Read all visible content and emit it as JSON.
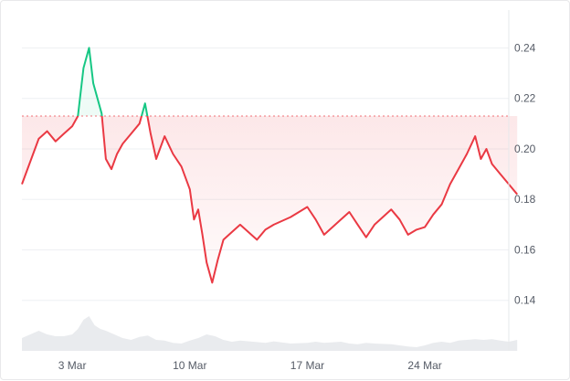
{
  "chart_data": {
    "type": "area",
    "title": "",
    "xlabel": "",
    "ylabel": "",
    "ylim": [
      0.12,
      0.255
    ],
    "baseline": 0.213,
    "x_start": "2024-02-29",
    "x_end": "2024-03-29",
    "x_ticks": [
      {
        "date": "2024-03-03",
        "label": "3 Mar"
      },
      {
        "date": "2024-03-10",
        "label": "10 Mar"
      },
      {
        "date": "2024-03-17",
        "label": "17 Mar"
      },
      {
        "date": "2024-03-24",
        "label": "24 Mar"
      }
    ],
    "y_ticks": [
      {
        "value": 0.24,
        "label": "0.24"
      },
      {
        "value": 0.22,
        "label": "0.22"
      },
      {
        "value": 0.2,
        "label": "0.20"
      },
      {
        "value": 0.18,
        "label": "0.18"
      },
      {
        "value": 0.16,
        "label": "0.16"
      },
      {
        "value": 0.14,
        "label": "0.14"
      }
    ],
    "grid": true,
    "colors": {
      "above": "#16c784",
      "below": "#ea3943",
      "volume": "#e9ebee",
      "grid": "#eef0f3"
    },
    "series": [
      {
        "values": [
          [
            "2024-02-29",
            0.186
          ],
          [
            "2024-03-01",
            0.204
          ],
          [
            "2024-03-01",
            0.207
          ],
          [
            "2024-03-02",
            0.203
          ],
          [
            "2024-03-02",
            0.206
          ],
          [
            "2024-03-03",
            0.209
          ],
          [
            "2024-03-03",
            0.213
          ],
          [
            "2024-03-03",
            0.232
          ],
          [
            "2024-03-04",
            0.24
          ],
          [
            "2024-03-04",
            0.226
          ],
          [
            "2024-03-04",
            0.22
          ],
          [
            "2024-03-04",
            0.214
          ],
          [
            "2024-03-05",
            0.196
          ],
          [
            "2024-03-05",
            0.192
          ],
          [
            "2024-03-05",
            0.198
          ],
          [
            "2024-03-06",
            0.202
          ],
          [
            "2024-03-06",
            0.206
          ],
          [
            "2024-03-07",
            0.21
          ],
          [
            "2024-03-07",
            0.218
          ],
          [
            "2024-03-07",
            0.206
          ],
          [
            "2024-03-08",
            0.196
          ],
          [
            "2024-03-08",
            0.205
          ],
          [
            "2024-03-09",
            0.198
          ],
          [
            "2024-03-09",
            0.193
          ],
          [
            "2024-03-10",
            0.184
          ],
          [
            "2024-03-10",
            0.172
          ],
          [
            "2024-03-10",
            0.176
          ],
          [
            "2024-03-10",
            0.166
          ],
          [
            "2024-03-11",
            0.155
          ],
          [
            "2024-03-11",
            0.147
          ],
          [
            "2024-03-11",
            0.156
          ],
          [
            "2024-03-12",
            0.164
          ],
          [
            "2024-03-12",
            0.167
          ],
          [
            "2024-03-13",
            0.17
          ],
          [
            "2024-03-14",
            0.164
          ],
          [
            "2024-03-14",
            0.168
          ],
          [
            "2024-03-15",
            0.17
          ],
          [
            "2024-03-16",
            0.173
          ],
          [
            "2024-03-17",
            0.177
          ],
          [
            "2024-03-17",
            0.172
          ],
          [
            "2024-03-18",
            0.166
          ],
          [
            "2024-03-19",
            0.172
          ],
          [
            "2024-03-19",
            0.175
          ],
          [
            "2024-03-20",
            0.17
          ],
          [
            "2024-03-20",
            0.165
          ],
          [
            "2024-03-21",
            0.17
          ],
          [
            "2024-03-22",
            0.176
          ],
          [
            "2024-03-22",
            0.172
          ],
          [
            "2024-03-23",
            0.166
          ],
          [
            "2024-03-23",
            0.168
          ],
          [
            "2024-03-24",
            0.169
          ],
          [
            "2024-03-24",
            0.174
          ],
          [
            "2024-03-25",
            0.178
          ],
          [
            "2024-03-25",
            0.186
          ],
          [
            "2024-03-26",
            0.192
          ],
          [
            "2024-03-26",
            0.198
          ],
          [
            "2024-03-27",
            0.205
          ],
          [
            "2024-03-27",
            0.196
          ],
          [
            "2024-03-27",
            0.2
          ],
          [
            "2024-03-28",
            0.194
          ],
          [
            "2024-03-28",
            0.19
          ],
          [
            "2024-03-29",
            0.186
          ],
          [
            "2024-03-29",
            0.182
          ]
        ]
      }
    ],
    "volume": [
      [
        "2024-02-29",
        0.35
      ],
      [
        "2024-03-01",
        0.55
      ],
      [
        "2024-03-01",
        0.45
      ],
      [
        "2024-03-02",
        0.4
      ],
      [
        "2024-03-02",
        0.4
      ],
      [
        "2024-03-03",
        0.45
      ],
      [
        "2024-03-03",
        0.6
      ],
      [
        "2024-03-03",
        0.85
      ],
      [
        "2024-03-04",
        0.95
      ],
      [
        "2024-03-04",
        0.7
      ],
      [
        "2024-03-04",
        0.6
      ],
      [
        "2024-03-05",
        0.55
      ],
      [
        "2024-03-05",
        0.45
      ],
      [
        "2024-03-06",
        0.35
      ],
      [
        "2024-03-06",
        0.3
      ],
      [
        "2024-03-07",
        0.38
      ],
      [
        "2024-03-07",
        0.42
      ],
      [
        "2024-03-08",
        0.3
      ],
      [
        "2024-03-08",
        0.28
      ],
      [
        "2024-03-09",
        0.22
      ],
      [
        "2024-03-09",
        0.2
      ],
      [
        "2024-03-10",
        0.28
      ],
      [
        "2024-03-10",
        0.35
      ],
      [
        "2024-03-11",
        0.45
      ],
      [
        "2024-03-11",
        0.4
      ],
      [
        "2024-03-12",
        0.3
      ],
      [
        "2024-03-12",
        0.25
      ],
      [
        "2024-03-13",
        0.28
      ],
      [
        "2024-03-14",
        0.24
      ],
      [
        "2024-03-14",
        0.22
      ],
      [
        "2024-03-15",
        0.26
      ],
      [
        "2024-03-16",
        0.2
      ],
      [
        "2024-03-17",
        0.22
      ],
      [
        "2024-03-17",
        0.25
      ],
      [
        "2024-03-18",
        0.22
      ],
      [
        "2024-03-19",
        0.25
      ],
      [
        "2024-03-19",
        0.2
      ],
      [
        "2024-03-20",
        0.18
      ],
      [
        "2024-03-20",
        0.22
      ],
      [
        "2024-03-21",
        0.2
      ],
      [
        "2024-03-22",
        0.18
      ],
      [
        "2024-03-22",
        0.15
      ],
      [
        "2024-03-23",
        0.12
      ],
      [
        "2024-03-23",
        0.1
      ],
      [
        "2024-03-24",
        0.15
      ],
      [
        "2024-03-24",
        0.22
      ],
      [
        "2024-03-25",
        0.25
      ],
      [
        "2024-03-25",
        0.22
      ],
      [
        "2024-03-26",
        0.28
      ],
      [
        "2024-03-26",
        0.3
      ],
      [
        "2024-03-27",
        0.32
      ],
      [
        "2024-03-27",
        0.3
      ],
      [
        "2024-03-28",
        0.32
      ],
      [
        "2024-03-28",
        0.28
      ],
      [
        "2024-03-29",
        0.25
      ],
      [
        "2024-03-29",
        0.3
      ]
    ]
  }
}
